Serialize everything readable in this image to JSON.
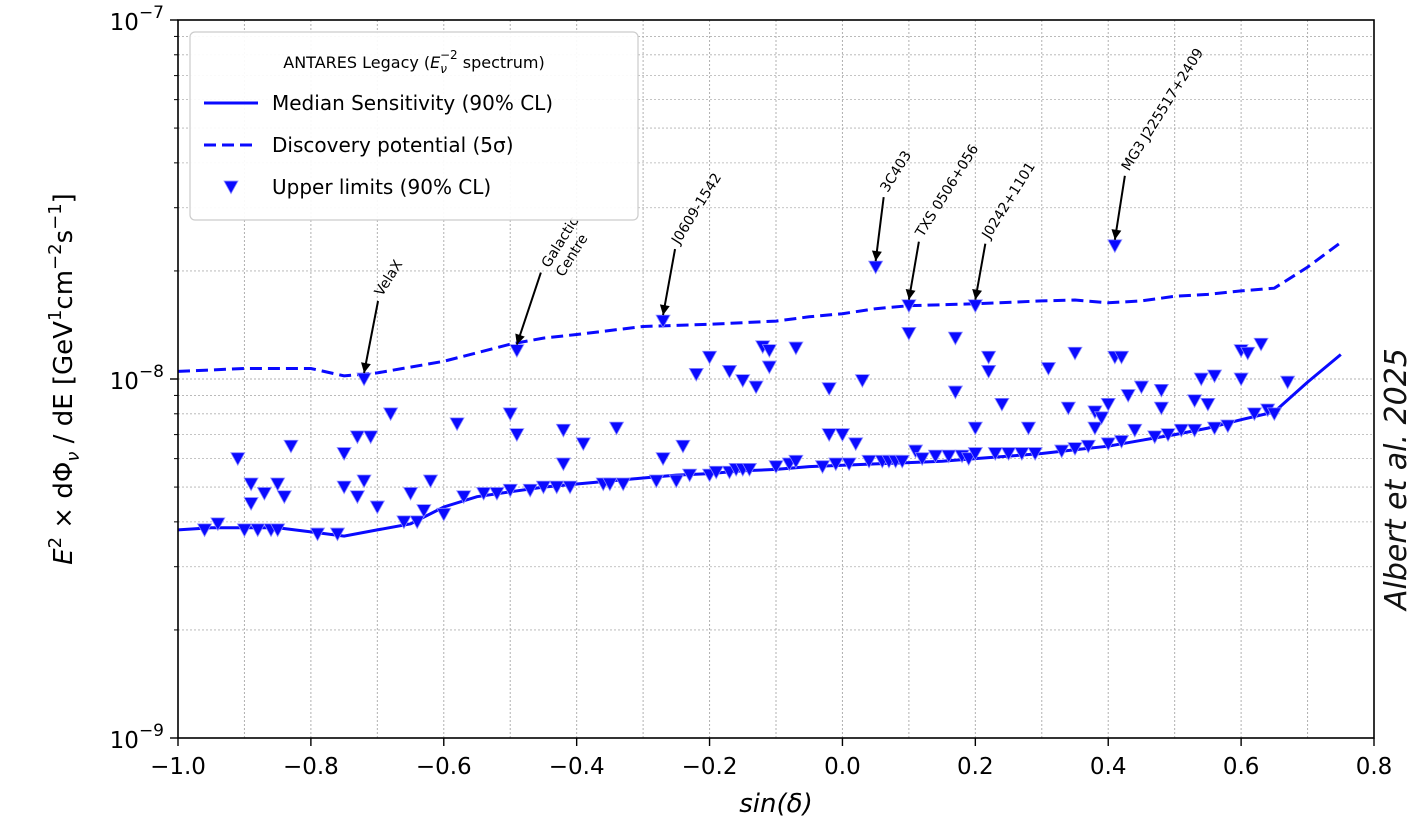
{
  "chart_data": {
    "type": "scatter",
    "x_scale": "linear",
    "y_scale": "log",
    "xlim": [
      -1.0,
      0.8
    ],
    "ylim": [
      1e-09,
      1e-07
    ],
    "grid": true,
    "xlabel": "sin(δ)",
    "ylabel_parts": [
      "E",
      "2",
      " × dΦ",
      "ν",
      " / dE [GeV",
      "1",
      "cm",
      "−2",
      "s",
      "−1",
      "]"
    ],
    "x_ticks": [
      {
        "value": -1.0,
        "label": "−1.0"
      },
      {
        "value": -0.8,
        "label": "−0.8"
      },
      {
        "value": -0.6,
        "label": "−0.6"
      },
      {
        "value": -0.4,
        "label": "−0.4"
      },
      {
        "value": -0.2,
        "label": "−0.2"
      },
      {
        "value": 0.0,
        "label": "0.0"
      },
      {
        "value": 0.2,
        "label": "0.2"
      },
      {
        "value": 0.4,
        "label": "0.4"
      },
      {
        "value": 0.6,
        "label": "0.6"
      },
      {
        "value": 0.8,
        "label": "0.8"
      }
    ],
    "y_ticks": [
      {
        "value": 1e-09,
        "base": "10",
        "exp": "−9"
      },
      {
        "value": 1e-08,
        "base": "10",
        "exp": "−8"
      },
      {
        "value": 1e-07,
        "base": "10",
        "exp": "−7"
      }
    ],
    "legend": {
      "position": "upper-left",
      "title_parts": [
        "ANTARES Legacy (",
        "E",
        "ν",
        "−2",
        " spectrum)"
      ],
      "entries": [
        "Median Sensitivity (90% CL)",
        "Discovery potential (5σ)",
        "Upper limits (90% CL)"
      ]
    },
    "colors": {
      "series": "#0a0aff",
      "grid": "#b0b0b0",
      "axis": "#000000"
    },
    "series": [
      {
        "name": "Median Sensitivity (90% CL)",
        "style": "solid",
        "x": [
          -1.0,
          -0.95,
          -0.9,
          -0.85,
          -0.8,
          -0.75,
          -0.7,
          -0.65,
          -0.6,
          -0.55,
          -0.5,
          -0.45,
          -0.4,
          -0.35,
          -0.3,
          -0.25,
          -0.2,
          -0.15,
          -0.1,
          -0.05,
          0.0,
          0.05,
          0.1,
          0.15,
          0.2,
          0.25,
          0.3,
          0.35,
          0.4,
          0.45,
          0.5,
          0.55,
          0.6,
          0.65,
          0.7,
          0.75
        ],
        "y": [
          3.8e-09,
          3.85e-09,
          3.85e-09,
          3.85e-09,
          3.75e-09,
          3.65e-09,
          3.8e-09,
          3.95e-09,
          4.4e-09,
          4.7e-09,
          4.85e-09,
          5e-09,
          5.1e-09,
          5.2e-09,
          5.3e-09,
          5.4e-09,
          5.45e-09,
          5.55e-09,
          5.6e-09,
          5.7e-09,
          5.75e-09,
          5.8e-09,
          5.85e-09,
          5.9e-09,
          6e-09,
          6.1e-09,
          6.2e-09,
          6.35e-09,
          6.5e-09,
          6.75e-09,
          7e-09,
          7.3e-09,
          7.7e-09,
          8.1e-09,
          9.8e-09,
          1.17e-08
        ]
      },
      {
        "name": "Discovery potential (5σ)",
        "style": "dashed",
        "x": [
          -1.0,
          -0.9,
          -0.8,
          -0.75,
          -0.7,
          -0.6,
          -0.5,
          -0.45,
          -0.4,
          -0.3,
          -0.2,
          -0.1,
          -0.05,
          0.0,
          0.05,
          0.1,
          0.2,
          0.3,
          0.35,
          0.4,
          0.45,
          0.5,
          0.55,
          0.6,
          0.65,
          0.7,
          0.75
        ],
        "y": [
          1.05e-08,
          1.07e-08,
          1.07e-08,
          1.02e-08,
          1.04e-08,
          1.12e-08,
          1.25e-08,
          1.3e-08,
          1.33e-08,
          1.4e-08,
          1.42e-08,
          1.45e-08,
          1.49e-08,
          1.52e-08,
          1.57e-08,
          1.6e-08,
          1.62e-08,
          1.65e-08,
          1.66e-08,
          1.63e-08,
          1.65e-08,
          1.7e-08,
          1.72e-08,
          1.76e-08,
          1.79e-08,
          2.05e-08,
          2.4e-08
        ]
      },
      {
        "name": "Upper limits (90% CL)",
        "style": "markers",
        "points": [
          [
            -0.96,
            3.8e-09
          ],
          [
            -0.94,
            3.95e-09
          ],
          [
            -0.91,
            6e-09
          ],
          [
            -0.9,
            3.8e-09
          ],
          [
            -0.89,
            4.5e-09
          ],
          [
            -0.89,
            5.1e-09
          ],
          [
            -0.88,
            3.8e-09
          ],
          [
            -0.87,
            4.8e-09
          ],
          [
            -0.86,
            3.8e-09
          ],
          [
            -0.85,
            3.8e-09
          ],
          [
            -0.85,
            5.1e-09
          ],
          [
            -0.84,
            4.7e-09
          ],
          [
            -0.83,
            6.5e-09
          ],
          [
            -0.79,
            3.7e-09
          ],
          [
            -0.76,
            3.7e-09
          ],
          [
            -0.75,
            6.2e-09
          ],
          [
            -0.75,
            5e-09
          ],
          [
            -0.73,
            6.9e-09
          ],
          [
            -0.73,
            4.7e-09
          ],
          [
            -0.72,
            1e-08
          ],
          [
            -0.72,
            5.2e-09
          ],
          [
            -0.71,
            6.9e-09
          ],
          [
            -0.7,
            4.4e-09
          ],
          [
            -0.68,
            8e-09
          ],
          [
            -0.66,
            4e-09
          ],
          [
            -0.65,
            4.8e-09
          ],
          [
            -0.64,
            4e-09
          ],
          [
            -0.63,
            4.3e-09
          ],
          [
            -0.62,
            5.2e-09
          ],
          [
            -0.6,
            4.2e-09
          ],
          [
            -0.58,
            7.5e-09
          ],
          [
            -0.57,
            4.7e-09
          ],
          [
            -0.54,
            4.8e-09
          ],
          [
            -0.52,
            4.8e-09
          ],
          [
            -0.5,
            4.9e-09
          ],
          [
            -0.5,
            8e-09
          ],
          [
            -0.49,
            7e-09
          ],
          [
            -0.49,
            1.2e-08
          ],
          [
            -0.47,
            4.9e-09
          ],
          [
            -0.45,
            5e-09
          ],
          [
            -0.43,
            5e-09
          ],
          [
            -0.42,
            7.2e-09
          ],
          [
            -0.42,
            5.8e-09
          ],
          [
            -0.41,
            5e-09
          ],
          [
            -0.39,
            6.6e-09
          ],
          [
            -0.36,
            5.1e-09
          ],
          [
            -0.35,
            5.1e-09
          ],
          [
            -0.33,
            5.1e-09
          ],
          [
            -0.34,
            7.3e-09
          ],
          [
            -0.28,
            5.2e-09
          ],
          [
            -0.27,
            6e-09
          ],
          [
            -0.27,
            1.45e-08
          ],
          [
            -0.25,
            5.2e-09
          ],
          [
            -0.23,
            5.4e-09
          ],
          [
            -0.24,
            6.5e-09
          ],
          [
            -0.22,
            1.03e-08
          ],
          [
            -0.2,
            1.15e-08
          ],
          [
            -0.2,
            5.4e-09
          ],
          [
            -0.19,
            5.5e-09
          ],
          [
            -0.17,
            5.5e-09
          ],
          [
            -0.17,
            1.05e-08
          ],
          [
            -0.16,
            5.6e-09
          ],
          [
            -0.15,
            5.6e-09
          ],
          [
            -0.15,
            9.9e-09
          ],
          [
            -0.14,
            5.6e-09
          ],
          [
            -0.13,
            9.5e-09
          ],
          [
            -0.12,
            1.23e-08
          ],
          [
            -0.11,
            1.2e-08
          ],
          [
            -0.11,
            1.08e-08
          ],
          [
            -0.1,
            5.7e-09
          ],
          [
            -0.08,
            5.8e-09
          ],
          [
            -0.07,
            5.9e-09
          ],
          [
            -0.07,
            1.22e-08
          ],
          [
            -0.03,
            5.7e-09
          ],
          [
            -0.02,
            7e-09
          ],
          [
            -0.02,
            9.4e-09
          ],
          [
            -0.01,
            5.8e-09
          ],
          [
            0.0,
            7e-09
          ],
          [
            0.01,
            5.8e-09
          ],
          [
            0.02,
            6.6e-09
          ],
          [
            0.03,
            9.9e-09
          ],
          [
            0.04,
            5.9e-09
          ],
          [
            0.05,
            2.05e-08
          ],
          [
            0.06,
            5.9e-09
          ],
          [
            0.07,
            5.9e-09
          ],
          [
            0.08,
            5.9e-09
          ],
          [
            0.09,
            5.9e-09
          ],
          [
            0.1,
            1.6e-08
          ],
          [
            0.1,
            1.34e-08
          ],
          [
            0.11,
            6.3e-09
          ],
          [
            0.12,
            6e-09
          ],
          [
            0.14,
            6.1e-09
          ],
          [
            0.16,
            6.1e-09
          ],
          [
            0.17,
            9.2e-09
          ],
          [
            0.17,
            1.3e-08
          ],
          [
            0.18,
            6.1e-09
          ],
          [
            0.19,
            6e-09
          ],
          [
            0.2,
            1.6e-08
          ],
          [
            0.2,
            7.3e-09
          ],
          [
            0.2,
            6.2e-09
          ],
          [
            0.22,
            1.05e-08
          ],
          [
            0.22,
            1.15e-08
          ],
          [
            0.23,
            6.2e-09
          ],
          [
            0.24,
            8.5e-09
          ],
          [
            0.25,
            6.2e-09
          ],
          [
            0.27,
            6.2e-09
          ],
          [
            0.28,
            7.3e-09
          ],
          [
            0.29,
            6.2e-09
          ],
          [
            0.31,
            1.07e-08
          ],
          [
            0.33,
            6.3e-09
          ],
          [
            0.34,
            8.3e-09
          ],
          [
            0.35,
            6.4e-09
          ],
          [
            0.35,
            1.18e-08
          ],
          [
            0.37,
            6.5e-09
          ],
          [
            0.38,
            8.1e-09
          ],
          [
            0.38,
            7.3e-09
          ],
          [
            0.39,
            7.8e-09
          ],
          [
            0.4,
            8.5e-09
          ],
          [
            0.4,
            6.6e-09
          ],
          [
            0.41,
            2.35e-08
          ],
          [
            0.41,
            1.15e-08
          ],
          [
            0.42,
            1.15e-08
          ],
          [
            0.42,
            6.7e-09
          ],
          [
            0.43,
            9e-09
          ],
          [
            0.44,
            7.2e-09
          ],
          [
            0.45,
            9.5e-09
          ],
          [
            0.47,
            6.9e-09
          ],
          [
            0.48,
            9.3e-09
          ],
          [
            0.48,
            8.3e-09
          ],
          [
            0.49,
            7e-09
          ],
          [
            0.51,
            7.2e-09
          ],
          [
            0.53,
            7.2e-09
          ],
          [
            0.53,
            8.7e-09
          ],
          [
            0.54,
            1e-08
          ],
          [
            0.55,
            8.5e-09
          ],
          [
            0.56,
            1.02e-08
          ],
          [
            0.56,
            7.3e-09
          ],
          [
            0.58,
            7.4e-09
          ],
          [
            0.6,
            1.2e-08
          ],
          [
            0.6,
            1e-08
          ],
          [
            0.61,
            1.18e-08
          ],
          [
            0.62,
            8e-09
          ],
          [
            0.63,
            1.25e-08
          ],
          [
            0.64,
            8.2e-09
          ],
          [
            0.65,
            8e-09
          ],
          [
            0.67,
            9.8e-09
          ]
        ]
      }
    ],
    "annotations": [
      {
        "label": "VelaX",
        "x": -0.72,
        "y": 1e-08
      },
      {
        "label": "Galactic\nCentre",
        "x": -0.49,
        "y": 1.2e-08
      },
      {
        "label": "J0609-1542",
        "x": -0.27,
        "y": 1.45e-08
      },
      {
        "label": "3C403",
        "x": 0.05,
        "y": 2.05e-08
      },
      {
        "label": "TXS 0506+056",
        "x": 0.1,
        "y": 1.6e-08
      },
      {
        "label": "J0242+1101",
        "x": 0.2,
        "y": 1.6e-08
      },
      {
        "label": "MG3 J225517+2409",
        "x": 0.41,
        "y": 2.35e-08
      }
    ]
  },
  "credit": "Albert et al. 2025"
}
